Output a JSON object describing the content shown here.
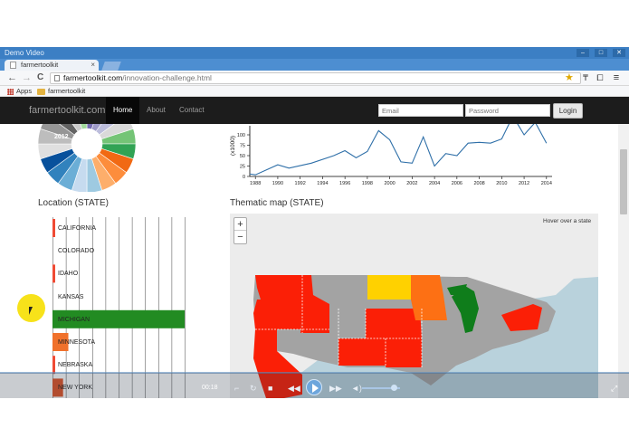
{
  "window": {
    "title": "Demo Video",
    "min": "–",
    "max": "□",
    "close": "✕"
  },
  "browser": {
    "tab_title": "farmertoolkit",
    "tab_close": "×",
    "url_domain": "farmertoolkit.com",
    "url_path": "/innovation-challenge.html",
    "bookmarks": [
      {
        "label": "Apps"
      },
      {
        "label": "farmertoolkit"
      }
    ],
    "back": "←",
    "forward": "→",
    "reload": "C",
    "star": "★",
    "menu": "≡"
  },
  "site": {
    "brand": "farmertoolkit.com",
    "nav": [
      {
        "label": "Home",
        "active": true
      },
      {
        "label": "About"
      },
      {
        "label": "Contact"
      }
    ],
    "email_placeholder": "Email",
    "password_placeholder": "Password",
    "login_label": "Login"
  },
  "pie": {
    "label": "2012",
    "colors": [
      "#f16913",
      "#fd8d3c",
      "#fdae6b",
      "#9ecae1",
      "#c6dbef",
      "#6baed6",
      "#3182bd",
      "#08519c",
      "#e0e0e0",
      "#bdbdbd",
      "#969696",
      "#636363",
      "#cccccc",
      "#a1d99b",
      "#756bb1",
      "#9e9ac8",
      "#bcbddc",
      "#d9d9d9",
      "#74c476",
      "#31a354"
    ]
  },
  "line_chart": {
    "ylabel": "(x1000)",
    "yticks": [
      "100",
      "75",
      "50",
      "25",
      "0"
    ],
    "xticks": [
      "1988",
      "1990",
      "1992",
      "1994",
      "1996",
      "1998",
      "2000",
      "2002",
      "2004",
      "2006",
      "2008",
      "2010",
      "2012",
      "2014"
    ],
    "points": [
      [
        1987,
        8
      ],
      [
        1988,
        4
      ],
      [
        1990,
        28
      ],
      [
        1991,
        20
      ],
      [
        1993,
        32
      ],
      [
        1995,
        50
      ],
      [
        1996,
        62
      ],
      [
        1997,
        45
      ],
      [
        1998,
        60
      ],
      [
        1999,
        110
      ],
      [
        2000,
        88
      ],
      [
        2001,
        35
      ],
      [
        2002,
        32
      ],
      [
        2003,
        95
      ],
      [
        2004,
        25
      ],
      [
        2005,
        55
      ],
      [
        2006,
        50
      ],
      [
        2007,
        80
      ],
      [
        2008,
        82
      ],
      [
        2009,
        80
      ],
      [
        2010,
        90
      ],
      [
        2011,
        145
      ],
      [
        2012,
        100
      ],
      [
        2013,
        130
      ],
      [
        2014,
        80
      ]
    ],
    "x_domain": [
      1987.5,
      2014.5
    ],
    "y_domain": [
      0,
      100
    ],
    "color": "#2e6fa8"
  },
  "location": {
    "title": "Location (STATE)",
    "states": [
      {
        "name": "CALIFORNIA",
        "value": 0.02,
        "color": "#ef4a34"
      },
      {
        "name": "COLORADO",
        "value": 0.0,
        "color": "#ef4a34"
      },
      {
        "name": "IDAHO",
        "value": 0.02,
        "color": "#ef4a34"
      },
      {
        "name": "KANSAS",
        "value": 0.0,
        "color": "#ef4a34"
      },
      {
        "name": "MICHIGAN",
        "value": 1.0,
        "color": "#228b22"
      },
      {
        "name": "MINNESOTA",
        "value": 0.12,
        "color": "#f0712b"
      },
      {
        "name": "NEBRASKA",
        "value": 0.02,
        "color": "#ef4a34"
      },
      {
        "name": "NEW YORK",
        "value": 0.08,
        "color": "#e05428"
      }
    ]
  },
  "thematic_map": {
    "title": "Thematic map (STATE)",
    "hover_text": "Hover over a state",
    "zoom_in": "+",
    "zoom_out": "−"
  },
  "video": {
    "time": "00:18"
  }
}
